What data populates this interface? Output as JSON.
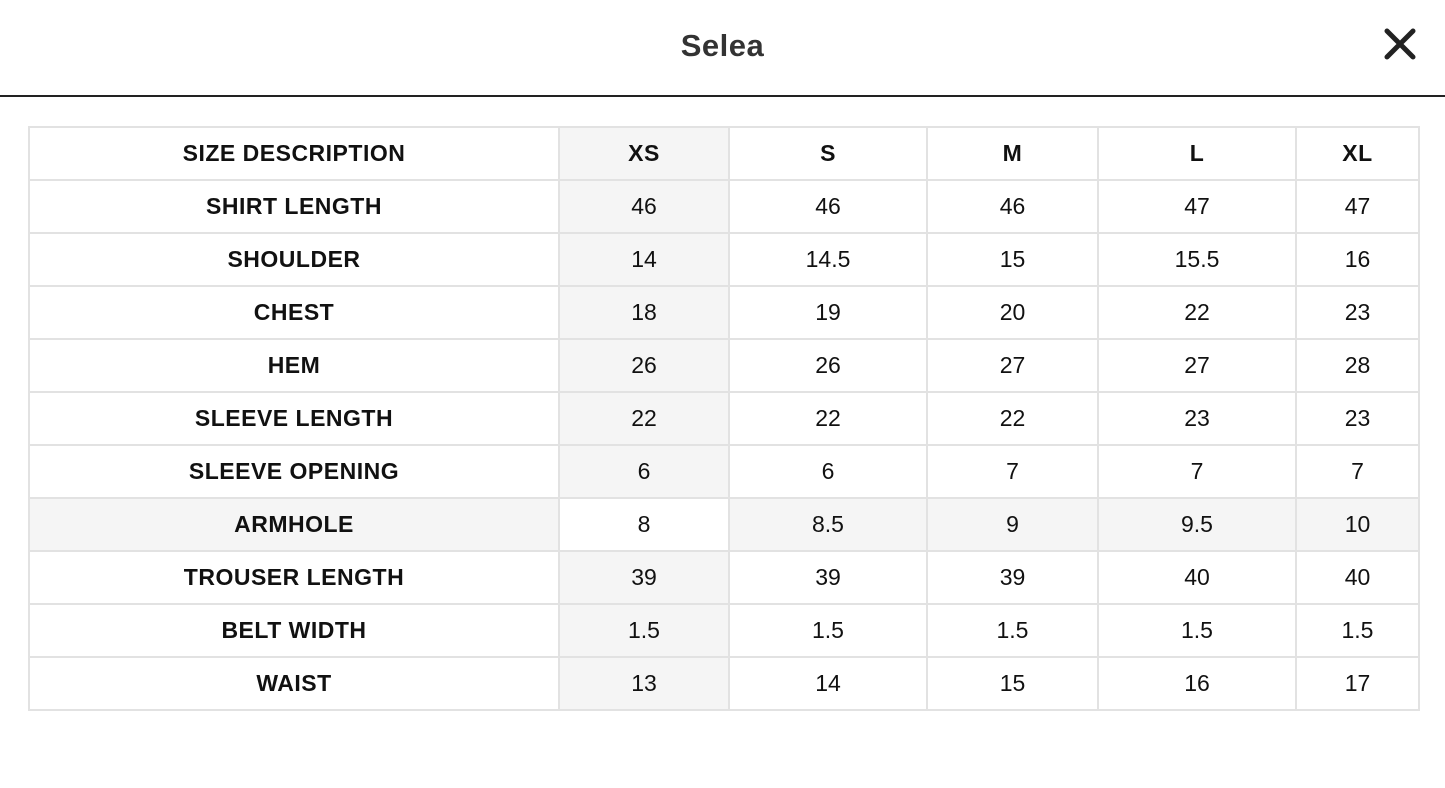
{
  "header": {
    "title": "Selea"
  },
  "table": {
    "columns": [
      "SIZE DESCRIPTION",
      "XS",
      "S",
      "M",
      "L",
      "XL"
    ],
    "rows": [
      [
        "SHIRT LENGTH",
        "46",
        "46",
        "46",
        "47",
        "47"
      ],
      [
        "SHOULDER",
        "14",
        "14.5",
        "15",
        "15.5",
        "16"
      ],
      [
        "CHEST",
        "18",
        "19",
        "20",
        "22",
        "23"
      ],
      [
        "HEM",
        "26",
        "26",
        "27",
        "27",
        "28"
      ],
      [
        "SLEEVE LENGTH",
        "22",
        "22",
        "22",
        "23",
        "23"
      ],
      [
        "SLEEVE OPENING",
        "6",
        "6",
        "7",
        "7",
        "7"
      ],
      [
        "ARMHOLE",
        "8",
        "8.5",
        "9",
        "9.5",
        "10"
      ],
      [
        "TROUSER LENGTH",
        "39",
        "39",
        "39",
        "40",
        "40"
      ],
      [
        "BELT WIDTH",
        "1.5",
        "1.5",
        "1.5",
        "1.5",
        "1.5"
      ],
      [
        "WAIST",
        "13",
        "14",
        "15",
        "16",
        "17"
      ]
    ]
  }
}
